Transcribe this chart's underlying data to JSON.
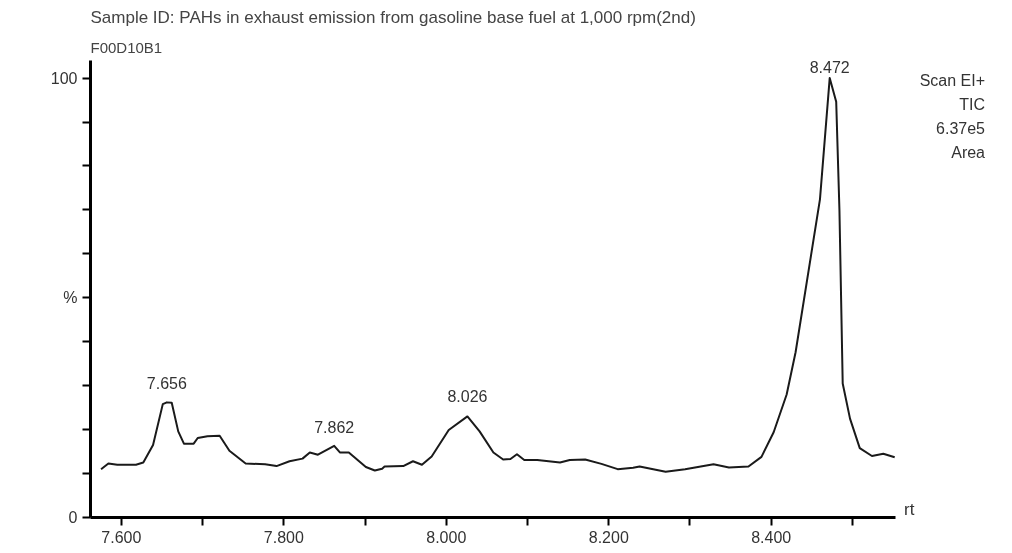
{
  "chart_data": {
    "type": "line",
    "title": "Sample ID: PAHs in exhaust emission from gasoline base fuel at 1,000 rpm(2nd)",
    "subtitle": "F00D10B1",
    "xlabel": "rt",
    "annotations": [
      "Scan EI+",
      "TIC",
      "6.37e5",
      "Area",
      {
        "text": "7.656",
        "x": 7.656,
        "y": 26
      },
      {
        "text": "7.862",
        "x": 7.862,
        "y": 16
      },
      {
        "text": "8.026",
        "x": 8.026,
        "y": 23
      },
      {
        "text": "8.472",
        "x": 8.472,
        "y": 98
      }
    ],
    "series": [
      {
        "color": "#1a1a1a",
        "x": [
          7.575,
          7.584,
          7.595,
          7.618,
          7.627,
          7.639,
          7.651,
          7.656,
          7.662,
          7.67,
          7.677,
          7.689,
          7.694,
          7.706,
          7.721,
          7.733,
          7.753,
          7.777,
          7.791,
          7.807,
          7.823,
          7.832,
          7.842,
          7.862,
          7.869,
          7.88,
          7.901,
          7.912,
          7.921,
          7.924,
          7.947,
          7.959,
          7.97,
          7.982,
          8.003,
          8.026,
          8.041,
          8.058,
          8.07,
          8.079,
          8.087,
          8.096,
          8.112,
          8.14,
          8.152,
          8.171,
          8.191,
          8.211,
          8.23,
          8.238,
          8.27,
          8.294,
          8.329,
          8.348,
          8.372,
          8.388,
          8.403,
          8.419,
          8.43,
          8.46,
          8.472,
          8.48,
          8.484,
          8.488,
          8.497,
          8.509,
          8.524,
          8.538,
          8.552
        ],
        "values": [
          11,
          12.3,
          12,
          12,
          12.5,
          16.5,
          25.8,
          26.2,
          26.1,
          19.6,
          16.8,
          16.8,
          18.1,
          18.5,
          18.6,
          15.2,
          12.3,
          12.1,
          11.7,
          12.8,
          13.4,
          14.8,
          14.3,
          16.3,
          14.8,
          14.8,
          11.5,
          10.7,
          11.1,
          11.6,
          11.7,
          12.8,
          12.0,
          13.9,
          19.9,
          23,
          19.6,
          14.8,
          13.2,
          13.3,
          14.4,
          13.1,
          13.1,
          12.5,
          13.1,
          13.2,
          12.2,
          11,
          11.3,
          11.6,
          10.4,
          11,
          12.1,
          11.4,
          11.6,
          13.8,
          19.4,
          28,
          37.6,
          72.4,
          100,
          94.6,
          69.8,
          30.5,
          22.5,
          15.8,
          14,
          14.5,
          13.7
        ]
      }
    ],
    "xlim": [
      7.562,
      8.553
    ],
    "ylim": [
      0,
      104
    ],
    "xticks": [
      {
        "value": 7.6,
        "label": "7.600"
      },
      {
        "value": 7.7,
        "label": null
      },
      {
        "value": 7.8,
        "label": "7.800"
      },
      {
        "value": 7.9,
        "label": null
      },
      {
        "value": 8.0,
        "label": "8.000"
      },
      {
        "value": 8.1,
        "label": null
      },
      {
        "value": 8.2,
        "label": "8.200"
      },
      {
        "value": 8.3,
        "label": null
      },
      {
        "value": 8.4,
        "label": "8.400"
      },
      {
        "value": 8.5,
        "label": null
      }
    ],
    "yticks": [
      0,
      {
        "value": 10,
        "label": null
      },
      {
        "value": 20,
        "label": null
      },
      {
        "value": 30,
        "label": null
      },
      {
        "value": 40,
        "label": null
      },
      {
        "value": 50,
        "label": "%"
      },
      {
        "value": 60,
        "label": null
      },
      {
        "value": 70,
        "label": null
      },
      {
        "value": 80,
        "label": null
      },
      {
        "value": 90,
        "label": null
      },
      100
    ],
    "grid": false,
    "line_style": "solid",
    "marker": "none"
  }
}
